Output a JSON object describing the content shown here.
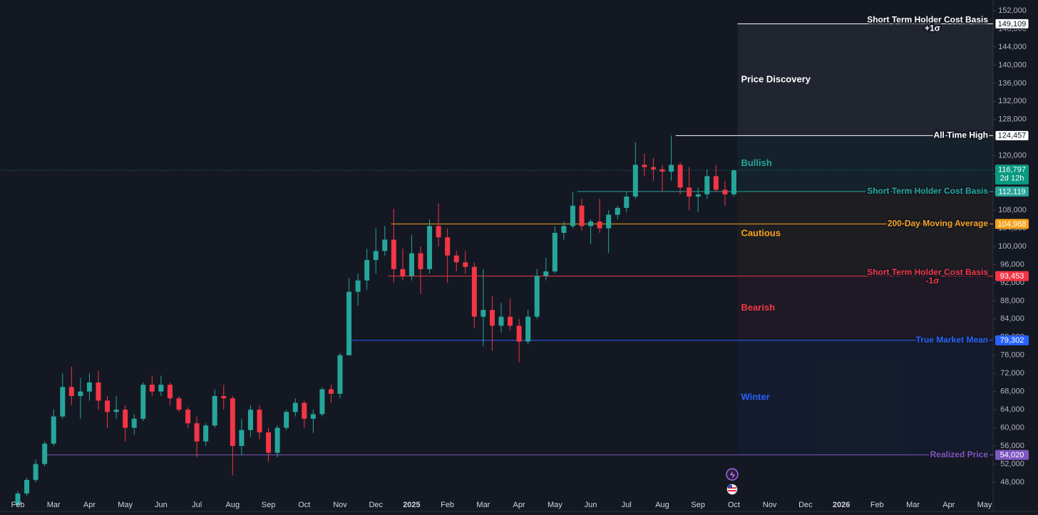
{
  "chart_data": {
    "type": "candlestick",
    "categories": [
      "Feb",
      null,
      null,
      null,
      "Mar",
      null,
      null,
      null,
      "Apr",
      null,
      null,
      null,
      "May",
      null,
      null,
      null,
      "Jun",
      null,
      null,
      null,
      "Jul",
      null,
      null,
      null,
      "Aug",
      null,
      null,
      null,
      "Sep",
      null,
      null,
      null,
      "Oct",
      null,
      null,
      null,
      "Nov",
      null,
      null,
      null,
      "Dec",
      null,
      null,
      null,
      "2025",
      null,
      null,
      null,
      "Feb",
      null,
      null,
      null,
      "Mar",
      null,
      null,
      null,
      "Apr",
      null,
      null,
      null,
      "May",
      null,
      null,
      null,
      "Jun",
      null,
      null,
      null,
      "Jul",
      null,
      null,
      null,
      "Aug",
      null,
      null,
      null,
      "Sep",
      null,
      null,
      null,
      "Oct",
      null,
      null,
      null,
      "Nov",
      null,
      null,
      null,
      "Dec",
      null,
      null,
      null,
      "2026",
      null,
      null,
      null,
      "Feb",
      null,
      null,
      null,
      "Mar",
      null,
      null,
      null,
      "Apr",
      null,
      null,
      null,
      "May"
    ],
    "open": [
      43000,
      45500,
      48500,
      52000,
      56500,
      62500,
      69000,
      67000,
      68000,
      70000,
      66000,
      63500,
      64000,
      60000,
      62000,
      69500,
      68000,
      69500,
      66500,
      64000,
      61000,
      57000,
      60500,
      67000,
      66500,
      56000,
      59500,
      64000,
      59000,
      54500,
      60000,
      63500,
      65500,
      62000,
      63000,
      68500,
      67500,
      76000,
      90000,
      92500,
      97000,
      99000,
      101500,
      95000,
      93500,
      98500,
      95000,
      104500,
      102000,
      98000,
      96500,
      95500,
      84500,
      86000,
      82500,
      84500,
      82500,
      79000,
      84500,
      93500,
      94500,
      103000,
      104500,
      109000,
      104500,
      105500,
      104000,
      107000,
      108500,
      111000,
      118000,
      117500,
      117000,
      116500,
      118000,
      113000,
      111000,
      111500,
      115500,
      112500,
      111500,
      null,
      null,
      null,
      null,
      null,
      null,
      null,
      null,
      null,
      null,
      null,
      null,
      null,
      null,
      null,
      null,
      null,
      null,
      null,
      null,
      null,
      null,
      null,
      null,
      null,
      null,
      null,
      null
    ],
    "high": [
      46000,
      49000,
      53000,
      57000,
      64000,
      72000,
      73500,
      71000,
      72000,
      72500,
      67000,
      67000,
      65000,
      63000,
      70000,
      71500,
      71500,
      70000,
      67000,
      64500,
      62500,
      61000,
      68500,
      69500,
      67000,
      62000,
      65000,
      65000,
      60000,
      60500,
      64000,
      66500,
      66000,
      64000,
      69000,
      69500,
      76500,
      93000,
      94000,
      99500,
      104000,
      104500,
      108300,
      99500,
      102500,
      100000,
      106000,
      109500,
      104000,
      99000,
      99000,
      96500,
      95000,
      89000,
      87500,
      88500,
      84000,
      86000,
      95000,
      97500,
      104500,
      105500,
      112000,
      110500,
      106000,
      110500,
      108000,
      109000,
      112000,
      123000,
      120500,
      119500,
      118000,
      124457,
      118500,
      117500,
      113000,
      117000,
      118000,
      114500,
      117000,
      null,
      null,
      null,
      null,
      null,
      null,
      null,
      null,
      null,
      null,
      null,
      null,
      null,
      null,
      null,
      null,
      null,
      null,
      null,
      null,
      null,
      null,
      null,
      null,
      null,
      null,
      null,
      null
    ],
    "low": [
      42500,
      45000,
      48000,
      51500,
      56000,
      62000,
      65000,
      62000,
      66000,
      64000,
      60000,
      62000,
      57000,
      58500,
      61500,
      67000,
      67000,
      65000,
      63500,
      60000,
      53500,
      56000,
      60000,
      64000,
      49500,
      54000,
      58000,
      57500,
      52500,
      53500,
      59500,
      62500,
      60000,
      58900,
      62500,
      65500,
      66500,
      76000,
      87000,
      90500,
      94000,
      98000,
      92000,
      92500,
      92500,
      89500,
      94000,
      100000,
      92000,
      94500,
      94000,
      82000,
      78000,
      77000,
      81000,
      81500,
      74500,
      78500,
      84000,
      92500,
      94000,
      101500,
      104000,
      103500,
      100500,
      103000,
      98500,
      106000,
      107500,
      110500,
      115500,
      114500,
      112000,
      114500,
      111500,
      108000,
      107500,
      110500,
      112000,
      109000,
      111000,
      null,
      null,
      null,
      null,
      null,
      null,
      null,
      null,
      null,
      null,
      null,
      null,
      null,
      null,
      null,
      null,
      null,
      null,
      null,
      null,
      null,
      null,
      null,
      null,
      null,
      null,
      null,
      null
    ],
    "close": [
      45500,
      48500,
      52000,
      56500,
      62500,
      69000,
      67000,
      68000,
      70000,
      66000,
      63500,
      64000,
      60000,
      62000,
      69500,
      68000,
      69500,
      66500,
      64000,
      61000,
      57000,
      60500,
      67000,
      66500,
      56000,
      59500,
      64000,
      59000,
      54500,
      60000,
      63500,
      65500,
      62000,
      63000,
      68500,
      67500,
      76000,
      90000,
      92500,
      97000,
      99000,
      101500,
      95000,
      93500,
      98500,
      95000,
      104500,
      102000,
      98000,
      96500,
      95500,
      84500,
      86000,
      82500,
      84500,
      82500,
      79000,
      84500,
      93500,
      94500,
      103000,
      104500,
      109000,
      104500,
      105500,
      104000,
      107000,
      108500,
      111000,
      118000,
      117500,
      117000,
      116500,
      118000,
      113000,
      111000,
      111500,
      115500,
      112500,
      111500,
      116797,
      null,
      null,
      null,
      null,
      null,
      null,
      null,
      null,
      null,
      null,
      null,
      null,
      null,
      null,
      null,
      null,
      null,
      null,
      null,
      null,
      null,
      null,
      null,
      null,
      null,
      null,
      null,
      null
    ],
    "up_color": "#26a69a",
    "down_color": "#f23645",
    "ylim": [
      41550,
      154360
    ],
    "yticks": [
      {
        "value": 48000,
        "label": "48,000"
      },
      {
        "value": 52000,
        "label": "52,000"
      },
      {
        "value": 56000,
        "label": "56,000"
      },
      {
        "value": 60000,
        "label": "60,000"
      },
      {
        "value": 64000,
        "label": "64,000"
      },
      {
        "value": 68000,
        "label": "68,000"
      },
      {
        "value": 72000,
        "label": "72,000"
      },
      {
        "value": 76000,
        "label": "76,000"
      },
      {
        "value": 80000,
        "label": "80,000"
      },
      {
        "value": 84000,
        "label": "84,000"
      },
      {
        "value": 88000,
        "label": "88,000"
      },
      {
        "value": 92000,
        "label": "92,000"
      },
      {
        "value": 96000,
        "label": "96,000"
      },
      {
        "value": 100000,
        "label": "100,000"
      },
      {
        "value": 104000,
        "label": "104,000"
      },
      {
        "value": 108000,
        "label": "108,000"
      },
      {
        "value": 112000,
        "label": "112,000"
      },
      {
        "value": 116000,
        "label": "116,000"
      },
      {
        "value": 120000,
        "label": "120,000"
      },
      {
        "value": 124000,
        "label": "124,000"
      },
      {
        "value": 128000,
        "label": "128,000"
      },
      {
        "value": 132000,
        "label": "132,000"
      },
      {
        "value": 136000,
        "label": "136,000"
      },
      {
        "value": 140000,
        "label": "140,000"
      },
      {
        "value": 144000,
        "label": "144,000"
      },
      {
        "value": 148000,
        "label": "148,000"
      },
      {
        "value": 152000,
        "label": "152,000"
      }
    ],
    "levels": [
      {
        "name": "Short Term Holder Cost Basis",
        "sub": "+1σ",
        "value": 149109,
        "value_label": "149,109",
        "color": "#ffffff"
      },
      {
        "name": "All Time High",
        "value": 124457,
        "value_label": "124,457",
        "color": "#ffffff"
      },
      {
        "name": "Short Term Holder Cost Basis",
        "value": 112119,
        "value_label": "112,119",
        "color": "#26a69a"
      },
      {
        "name": "200-Day Moving Average",
        "value": 104968,
        "value_label": "104,968",
        "color": "#f7a21b"
      },
      {
        "name": "Short Term Holder Cost Basis",
        "sub": "-1σ",
        "value": 93453,
        "value_label": "93,453",
        "color": "#f23645"
      },
      {
        "name": "True Market Mean",
        "value": 79302,
        "value_label": "79,302",
        "color": "#2962ff"
      },
      {
        "name": "Realized Price",
        "value": 54020,
        "value_label": "54,020",
        "color": "#7e57c2"
      }
    ],
    "zones": [
      {
        "name": "Price Discovery",
        "color": "#ffffff"
      },
      {
        "name": "Bullish",
        "color": "#26a69a"
      },
      {
        "name": "Cautious",
        "color": "#f7a21b"
      },
      {
        "name": "Bearish",
        "color": "#f23645"
      },
      {
        "name": "Winter",
        "color": "#2962ff"
      }
    ],
    "last_price": {
      "value": 116797,
      "label": "116,797",
      "countdown": "2d 12h",
      "color": "#089981"
    }
  }
}
